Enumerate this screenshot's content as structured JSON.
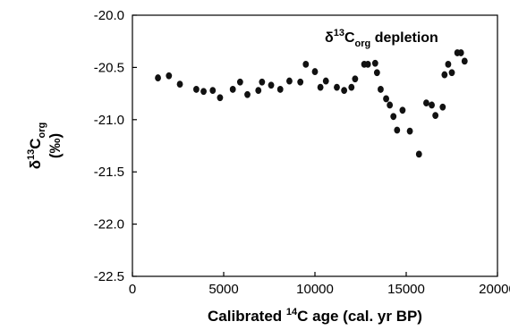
{
  "chart_data": {
    "type": "scatter",
    "title": "",
    "xlabel": {
      "prefix": "Calibrated ",
      "sup": "14",
      "suffix": "C age (cal. yr BP)"
    },
    "ylabel": {
      "main": "δ",
      "sup": "13",
      "base": "C",
      "sub": "org",
      "unit": "(‰)"
    },
    "annotation": {
      "main": "δ",
      "sup": "13",
      "base": "C",
      "sub": "org",
      "suffix": " depletion"
    },
    "xlim": [
      0,
      20000
    ],
    "ylim": [
      -22.5,
      -20.0
    ],
    "x_ticks": [
      0,
      5000,
      10000,
      15000,
      20000
    ],
    "x_tick_labels": [
      "0",
      "5000",
      "10000",
      "15000",
      "20000"
    ],
    "y_ticks": [
      -20.0,
      -20.5,
      -21.0,
      -21.5,
      -22.0,
      -22.5
    ],
    "y_tick_labels": [
      "-20.0",
      "-20.5",
      "-21.0",
      "-21.5",
      "-22.0",
      "-22.5"
    ],
    "grid": false,
    "marker_color": "#111111",
    "series": [
      {
        "points": [
          [
            1400,
            -20.6
          ],
          [
            2000,
            -20.58
          ],
          [
            2600,
            -20.66
          ],
          [
            3500,
            -20.71
          ],
          [
            3900,
            -20.73
          ],
          [
            4400,
            -20.72
          ],
          [
            4800,
            -20.79
          ],
          [
            5500,
            -20.71
          ],
          [
            5900,
            -20.64
          ],
          [
            6300,
            -20.76
          ],
          [
            6900,
            -20.72
          ],
          [
            7100,
            -20.64
          ],
          [
            7600,
            -20.67
          ],
          [
            8100,
            -20.71
          ],
          [
            8600,
            -20.63
          ],
          [
            9200,
            -20.64
          ],
          [
            9500,
            -20.47
          ],
          [
            10000,
            -20.54
          ],
          [
            10300,
            -20.69
          ],
          [
            10600,
            -20.63
          ],
          [
            11200,
            -20.69
          ],
          [
            11600,
            -20.72
          ],
          [
            12000,
            -20.69
          ],
          [
            12200,
            -20.61
          ],
          [
            12700,
            -20.47
          ],
          [
            12900,
            -20.47
          ],
          [
            13300,
            -20.46
          ],
          [
            13400,
            -20.55
          ],
          [
            13600,
            -20.71
          ],
          [
            13900,
            -20.8
          ],
          [
            14100,
            -20.86
          ],
          [
            14300,
            -20.97
          ],
          [
            14500,
            -21.1
          ],
          [
            14800,
            -20.91
          ],
          [
            15200,
            -21.11
          ],
          [
            15700,
            -21.33
          ],
          [
            16100,
            -20.84
          ],
          [
            16400,
            -20.86
          ],
          [
            16600,
            -20.96
          ],
          [
            17000,
            -20.88
          ],
          [
            17100,
            -20.57
          ],
          [
            17300,
            -20.47
          ],
          [
            17500,
            -20.55
          ],
          [
            17800,
            -20.36
          ],
          [
            18000,
            -20.36
          ],
          [
            18200,
            -20.44
          ]
        ]
      }
    ]
  }
}
